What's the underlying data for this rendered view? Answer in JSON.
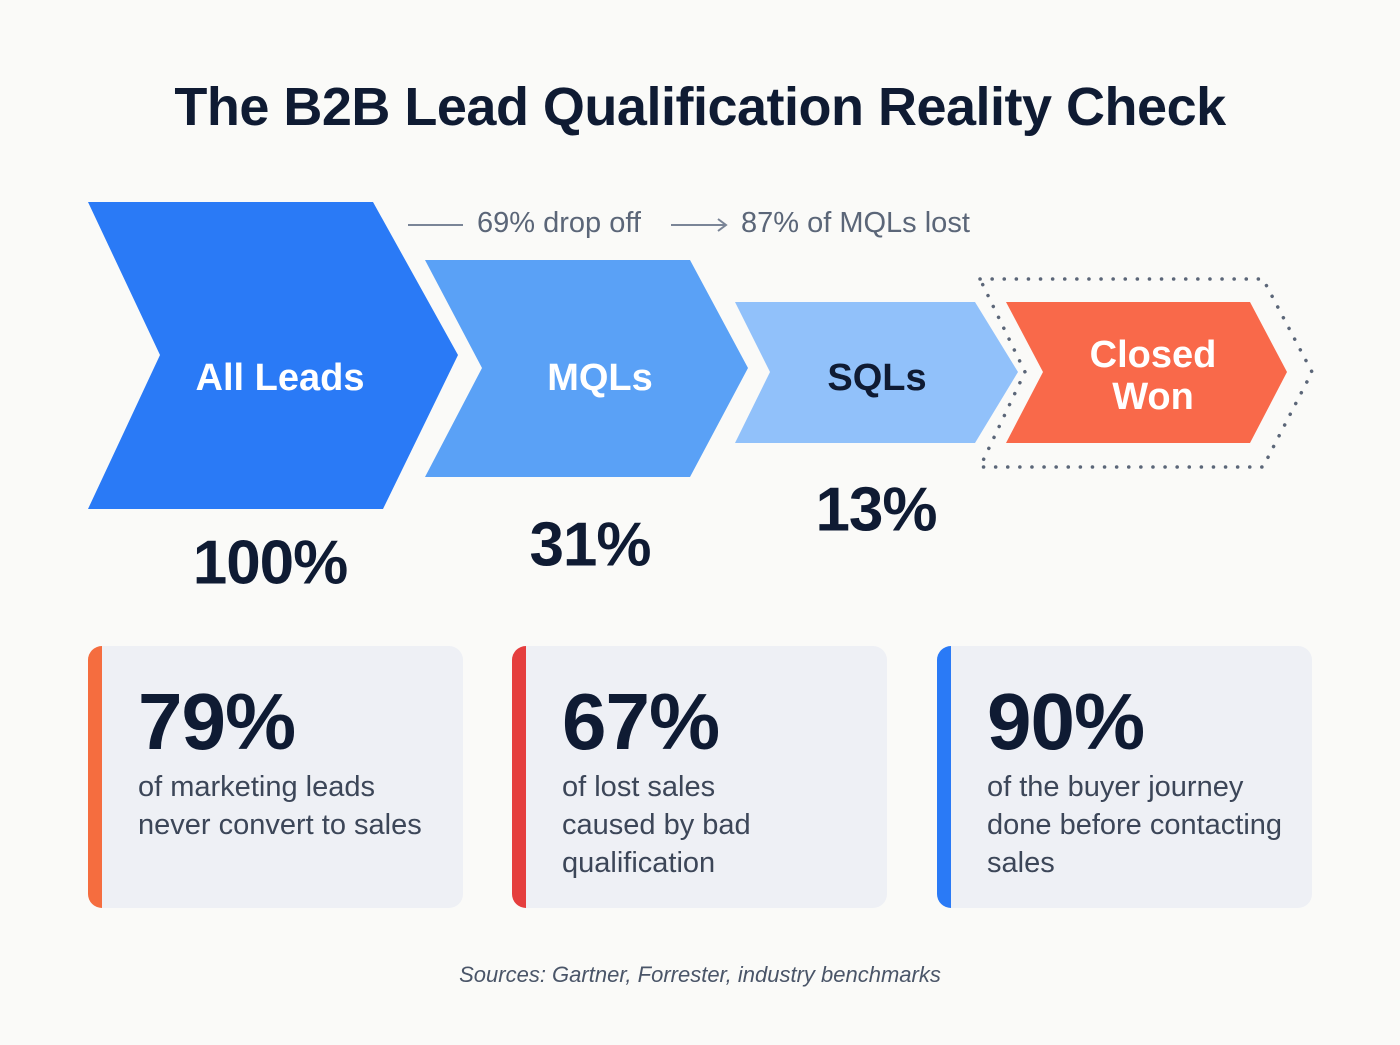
{
  "title": "The B2B Lead Qualification Reality Check",
  "funnel": {
    "stages": [
      {
        "label": "All Leads",
        "percent": "100%",
        "color": "#2a7af6"
      },
      {
        "label": "MQLs",
        "percent": "31%",
        "color": "#5aa1f6"
      },
      {
        "label": "SQLs",
        "percent": "13%",
        "color": "#91c1fa"
      },
      {
        "label": "Closed\nWon",
        "color": "#f9694a",
        "outline": "dotted"
      }
    ],
    "notes": {
      "drop_off": "69% drop off",
      "mqls_lost": "87% of MQLs lost"
    }
  },
  "cards": [
    {
      "value": "79%",
      "text": "of marketing leads never convert to sales",
      "accent": "#f56d3f"
    },
    {
      "value": "67%",
      "text": "of lost sales caused by bad qualification",
      "accent": "#e53e3e"
    },
    {
      "value": "90%",
      "text": "of the buyer journey done before contacting sales",
      "accent": "#2a7af6"
    }
  ],
  "sources": "Sources: Gartner, Forrester, industry benchmarks"
}
